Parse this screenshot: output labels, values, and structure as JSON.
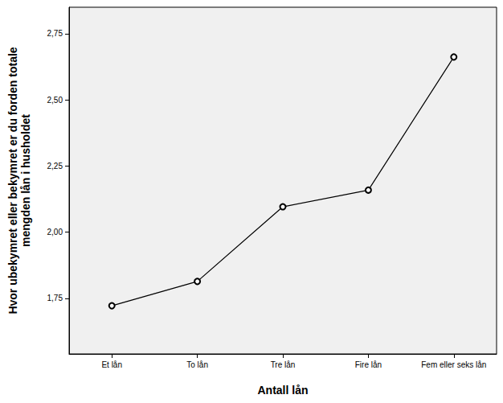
{
  "chart_data": {
    "type": "line",
    "x_label": "Antall lån",
    "y_label": "Hvor ubekymret eller bekymret er du forden totale\nmengden lån i husholdet",
    "categories": [
      "Et lån",
      "To lån",
      "Tre lån",
      "Fire lån",
      "Fem eller seks lån"
    ],
    "values": [
      1.722,
      1.814,
      2.096,
      2.159,
      2.662
    ],
    "color": "#000000",
    "marker": "circle",
    "ylim": [
      1.54,
      2.85
    ],
    "yticks": [
      {
        "value": 1.75,
        "label": "1,75"
      },
      {
        "value": 2.0,
        "label": "2,00"
      },
      {
        "value": 2.25,
        "label": "2,25"
      },
      {
        "value": 2.5,
        "label": "2,50"
      },
      {
        "value": 2.75,
        "label": "2,75"
      }
    ],
    "grid": false
  }
}
